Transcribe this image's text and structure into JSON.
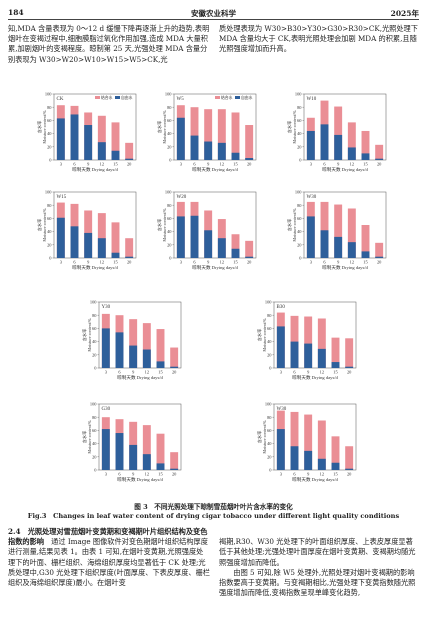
{
  "header": {
    "page_number": "184",
    "journal": "安徽农业科学",
    "year": "2025年"
  },
  "top_text": {
    "left": "知,MDA 含量表现为 0～12 d 缓慢下降再逐渐上升的趋势,表明烟叶在变褐过程中,细胞膜脂过氧化作用加强,造成 MDA 大量积累,加剧烟叶的变褐程度。晾制第 25 天,光强处理 MDA 含量分别表现为 W30>W20>W10>W15>W5>CK,光",
    "right": "质处理表现为 W30>B30>Y30>G30>R30>CK,光照处理下 MDA 含量均大于 CK,表明光照处理会加剧 MDA 的积累,且随光照强度增加而升高。"
  },
  "figure3": {
    "caption_cn": "图 3　不同光照处理下晾制雪茄烟叶叶片含水率的变化",
    "caption_en": "Fig.3　Changes in leaf water content of drying cigar tobacco under different light quality conditions"
  },
  "text_sections": {
    "left": {
      "heading": "2.4　光照处理对雪茄烟叶变黄期和变褐期叶片组织结构及变色指数的影响",
      "body": "通过 Image 图像软件对变色期烟叶组织结构厚度进行测量,结果见表 1。由表 1 可知,在烟叶变黄期,光照强度处理下的叶面、栅栏组织、海绵组织厚度均显著低于 CK 处理;光质处理中,G30 光处理下组织厚度(叶面厚度、下表皮厚度、栅栏组织及海绵组织厚度)最小。在烟叶变"
    },
    "right": "褐期,R30、W30 光处理下的叶面组织厚度、上表皮厚度显著低于其他处理;光强处理叶面厚度在烟叶变黄期、变褐期均随光照强度增加而降低。\n　　由图 5 可知,除 W5 处理外,光照处理对烟叶变褐期的影响指数要高于变黄期。与变褐期相比,光强处理下变黄指数随光照强度增加而降低,变褐指数呈现单峰变化趋势,"
  },
  "chart_common": {
    "x": [
      "3",
      "6",
      "9",
      "12",
      "15",
      "20"
    ],
    "xlabel": "晾制天数 Drying days/d",
    "ylabel": "含水率\nMoisture content/%",
    "yticks": [
      "0",
      "20",
      "40",
      "60",
      "80",
      "100"
    ],
    "ylim": [
      0,
      100
    ],
    "series_names": [
      "结合水",
      "自由水"
    ],
    "colors": {
      "bound": "#ea8e95",
      "free": "#2e5f9b"
    }
  },
  "chart_data": [
    {
      "type": "bar",
      "label": "CK",
      "x": [
        "3",
        "6",
        "9",
        "12",
        "15",
        "20"
      ],
      "series": [
        {
          "name": "结合水",
          "values": [
            83,
            82,
            72,
            67,
            57,
            26
          ]
        },
        {
          "name": "自由水",
          "values": [
            63,
            69,
            53,
            27,
            14,
            2
          ]
        }
      ],
      "ylim": [
        0,
        100
      ]
    },
    {
      "type": "bar",
      "label": "W5",
      "x": [
        "3",
        "6",
        "9",
        "12",
        "15",
        "20"
      ],
      "series": [
        {
          "name": "结合水",
          "values": [
            83,
            80,
            77,
            77,
            72,
            53
          ]
        },
        {
          "name": "自由水",
          "values": [
            64,
            37,
            28,
            26,
            11,
            3
          ]
        }
      ],
      "ylim": [
        0,
        100
      ]
    },
    {
      "type": "bar",
      "label": "W10",
      "x": [
        "3",
        "6",
        "9",
        "12",
        "15",
        "20"
      ],
      "series": [
        {
          "name": "结合水",
          "values": [
            64,
            90,
            81,
            57,
            44,
            23
          ]
        },
        {
          "name": "自由水",
          "values": [
            44,
            54,
            38,
            19,
            10,
            2
          ]
        }
      ],
      "ylim": [
        0,
        100
      ]
    },
    {
      "type": "bar",
      "label": "W15",
      "x": [
        "3",
        "6",
        "9",
        "12",
        "15",
        "20"
      ],
      "series": [
        {
          "name": "结合水",
          "values": [
            84,
            82,
            72,
            68,
            54,
            30
          ]
        },
        {
          "name": "自由水",
          "values": [
            61,
            48,
            38,
            30,
            8,
            2
          ]
        }
      ],
      "ylim": [
        0,
        100
      ]
    },
    {
      "type": "bar",
      "label": "W20",
      "x": [
        "3",
        "6",
        "9",
        "12",
        "15",
        "20"
      ],
      "series": [
        {
          "name": "结合水",
          "values": [
            85,
            85,
            72,
            59,
            36,
            26
          ]
        },
        {
          "name": "自由水",
          "values": [
            63,
            64,
            42,
            30,
            14,
            2
          ]
        }
      ],
      "ylim": [
        0,
        100
      ]
    },
    {
      "type": "bar",
      "label": "W30",
      "x": [
        "3",
        "6",
        "9",
        "12",
        "15",
        "20"
      ],
      "series": [
        {
          "name": "结合水",
          "values": [
            85,
            85,
            81,
            75,
            50,
            23
          ]
        },
        {
          "name": "自由水",
          "values": [
            63,
            42,
            32,
            24,
            10,
            2
          ]
        }
      ],
      "ylim": [
        0,
        100
      ]
    },
    {
      "type": "bar",
      "label": "Y30",
      "x": [
        "3",
        "6",
        "9",
        "12",
        "15",
        "20"
      ],
      "series": [
        {
          "name": "结合水",
          "values": [
            82,
            80,
            74,
            68,
            59,
            31
          ]
        },
        {
          "name": "自由水",
          "values": [
            60,
            54,
            34,
            28,
            10,
            2
          ]
        }
      ],
      "ylim": [
        0,
        100
      ]
    },
    {
      "type": "bar",
      "label": "B30",
      "x": [
        "3",
        "6",
        "9",
        "12",
        "15",
        "20"
      ],
      "series": [
        {
          "name": "结合水",
          "values": [
            84,
            79,
            78,
            75,
            46,
            45
          ]
        },
        {
          "name": "自由水",
          "values": [
            63,
            40,
            37,
            29,
            9,
            2
          ]
        }
      ],
      "ylim": [
        0,
        100
      ]
    },
    {
      "type": "bar",
      "label": "G30",
      "x": [
        "3",
        "6",
        "9",
        "12",
        "15",
        "20"
      ],
      "series": [
        {
          "name": "结合水",
          "values": [
            80,
            77,
            73,
            68,
            55,
            27
          ]
        },
        {
          "name": "自由水",
          "values": [
            62,
            56,
            38,
            24,
            10,
            2
          ]
        }
      ],
      "ylim": [
        0,
        100
      ]
    },
    {
      "type": "bar",
      "label": "W30",
      "x": [
        "3",
        "6",
        "9",
        "12",
        "15",
        "20"
      ],
      "series": [
        {
          "name": "结合水",
          "values": [
            90,
            88,
            84,
            75,
            51,
            36
          ]
        },
        {
          "name": "自由水",
          "values": [
            62,
            36,
            29,
            17,
            11,
            2
          ]
        }
      ],
      "ylim": [
        0,
        100
      ]
    }
  ]
}
